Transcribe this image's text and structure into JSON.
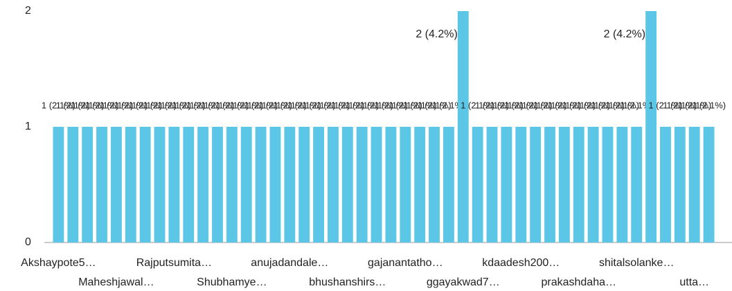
{
  "chart_data": {
    "type": "bar",
    "categories": [
      "Akshaypote5…",
      null,
      null,
      null,
      "Maheshjawal…",
      null,
      null,
      null,
      "Rajputsumita…",
      null,
      null,
      null,
      "Shubhamye…",
      null,
      null,
      null,
      "anujadandale…",
      null,
      null,
      null,
      "bhushanshirs…",
      null,
      null,
      null,
      "gajanantatho…",
      null,
      null,
      null,
      "ggayakwad7…",
      null,
      null,
      null,
      "kdaadesh200…",
      null,
      null,
      null,
      "prakashdaha…",
      null,
      null,
      null,
      "shitalsolanke…",
      null,
      null,
      null,
      "utta…",
      null
    ],
    "values": [
      1,
      1,
      1,
      1,
      1,
      1,
      1,
      1,
      1,
      1,
      1,
      1,
      1,
      1,
      1,
      1,
      1,
      1,
      1,
      1,
      1,
      1,
      1,
      1,
      1,
      1,
      1,
      1,
      2,
      1,
      1,
      1,
      1,
      1,
      1,
      1,
      1,
      1,
      1,
      1,
      1,
      2,
      1,
      1,
      1,
      1
    ],
    "value_labels": [
      "1 (2.1%)",
      "1 (2.1%)",
      "1 (2.1%)",
      "1 (2.1%)",
      "1 (2.1%)",
      "1 (2.1%)",
      "1 (2.1%)",
      "1 (2.1%)",
      "1 (2.1%)",
      "1 (2.1%)",
      "1 (2.1%)",
      "1 (2.1%)",
      "1 (2.1%)",
      "1 (2.1%)",
      "1 (2.1%)",
      "1 (2.1%)",
      "1 (2.1%)",
      "1 (2.1%)",
      "1 (2.1%)",
      "1 (2.1%)",
      "1 (2.1%)",
      "1 (2.1%)",
      "1 (2.1%)",
      "1 (2.1%)",
      "1 (2.1%)",
      "1 (2.1%)",
      "1 (2.1%)",
      "1 (2.1%)",
      "2 (4.2%)",
      "1 (2.1%)",
      "1 (2.1%)",
      "1 (2.1%)",
      "1 (2.1%)",
      "1 (2.1%)",
      "1 (2.1%)",
      "1 (2.1%)",
      "1 (2.1%)",
      "1 (2.1%)",
      "1 (2.1%)",
      "1 (2.1%)",
      "1 (2.1%)",
      "2 (4.2%)",
      "1 (2.1%)",
      "1 (2.1%)",
      "1 (2.1%)",
      "1 (2.1%)"
    ],
    "color": "#5cc6e6",
    "ylim": [
      0,
      2
    ],
    "yticks": [
      0,
      1,
      2
    ]
  }
}
